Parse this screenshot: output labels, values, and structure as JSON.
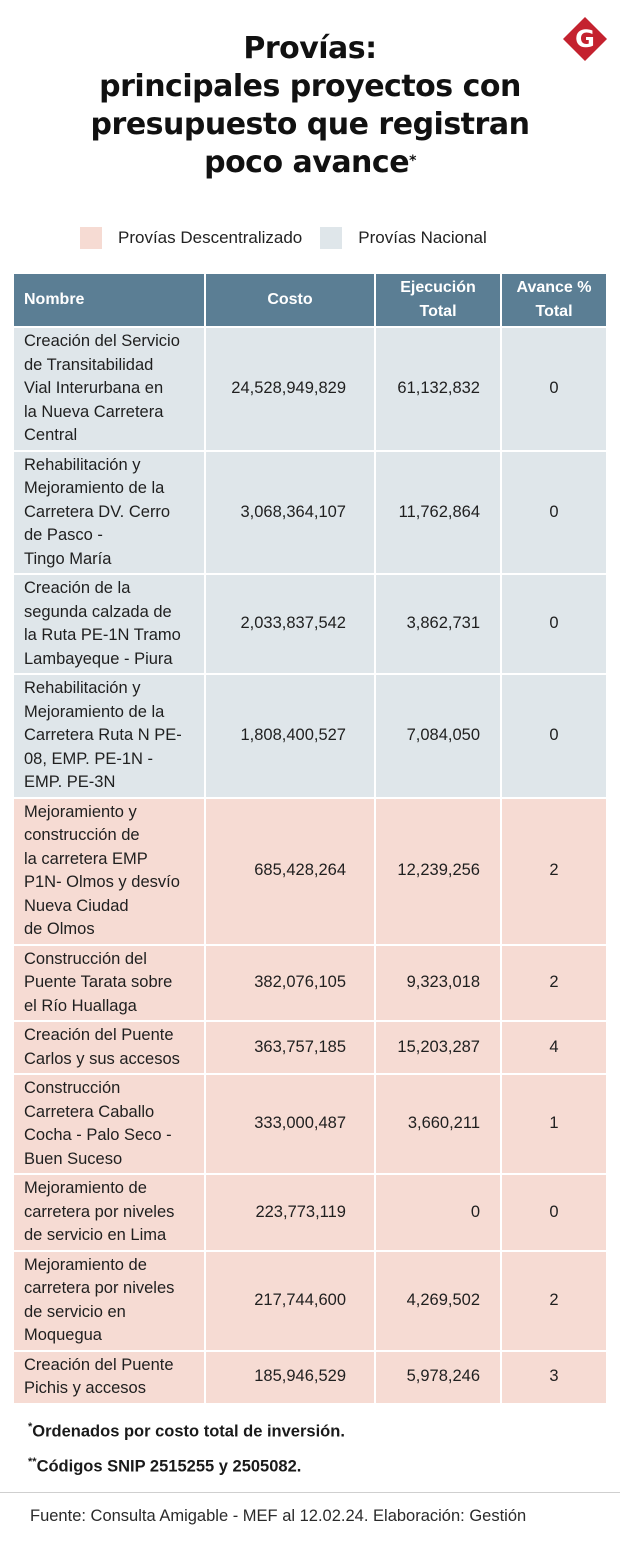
{
  "header": {
    "title_lines": [
      "Provías:",
      "principales proyectos con",
      "presupuesto que registran",
      "poco avance"
    ],
    "title_mark": "*",
    "logo_letter": "G"
  },
  "legend": [
    {
      "label": "Provías Descentralizado",
      "color": "#f6dbd3"
    },
    {
      "label": "Provías Nacional",
      "color": "#dfe6ea"
    }
  ],
  "colors": {
    "header_bg": "#5b7e94",
    "nacional": "#dfe6ea",
    "descentralizado": "#f6dbd3",
    "logo": "#c4222f"
  },
  "chart_data": {
    "type": "table",
    "columns": [
      "Nombre",
      "Costo",
      "Ejecución Total",
      "Avance % Total"
    ],
    "column_lines": [
      [
        "Nombre"
      ],
      [
        "Costo"
      ],
      [
        "Ejecución",
        "Total"
      ],
      [
        "Avance %",
        "Total"
      ]
    ],
    "rows": [
      {
        "group": "Provías Nacional",
        "name_lines": [
          "Creación del Servicio",
          "de Transitabilidad",
          "Vial Interurbana en",
          "la Nueva Carretera",
          "Central"
        ],
        "costo": "24,528,949,829",
        "ejecucion": "61,132,832",
        "avance": "0"
      },
      {
        "group": "Provías Nacional",
        "name_lines": [
          "Rehabilitación y",
          "Mejoramiento de la",
          "Carretera DV. Cerro",
          "de Pasco -",
          "Tingo María"
        ],
        "costo": "3,068,364,107",
        "ejecucion": "11,762,864",
        "avance": "0"
      },
      {
        "group": "Provías Nacional",
        "name_lines": [
          "Creación de la",
          "segunda calzada de",
          "la Ruta PE-1N Tramo",
          "Lambayeque - Piura"
        ],
        "costo": "2,033,837,542",
        "ejecucion": "3,862,731",
        "avance": "0"
      },
      {
        "group": "Provías Nacional",
        "name_lines": [
          "Rehabilitación y",
          "Mejoramiento de la",
          "Carretera Ruta N PE-",
          "08, EMP. PE-1N -",
          "EMP. PE-3N"
        ],
        "costo": "1,808,400,527",
        "ejecucion": "7,084,050",
        "avance": "0"
      },
      {
        "group": "Provías Descentralizado",
        "name_lines": [
          "Mejoramiento y",
          "construcción de",
          "la carretera EMP",
          "P1N- Olmos y desvío",
          "Nueva Ciudad",
          "de Olmos"
        ],
        "costo": "685,428,264",
        "ejecucion": "12,239,256",
        "avance": "2"
      },
      {
        "group": "Provías Descentralizado",
        "name_lines": [
          "Construcción del",
          "Puente Tarata sobre",
          "el Río Huallaga"
        ],
        "costo": "382,076,105",
        "ejecucion": "9,323,018",
        "avance": "2"
      },
      {
        "group": "Provías Descentralizado",
        "name_lines": [
          "Creación del Puente",
          "Carlos y sus accesos"
        ],
        "costo": "363,757,185",
        "ejecucion": "15,203,287",
        "avance": "4"
      },
      {
        "group": "Provías Descentralizado",
        "name_lines": [
          "Construcción",
          "Carretera Caballo",
          "Cocha - Palo Seco -",
          "Buen Suceso"
        ],
        "costo": "333,000,487",
        "ejecucion": "3,660,211",
        "avance": "1"
      },
      {
        "group": "Provías Descentralizado",
        "name_lines": [
          "Mejoramiento de",
          "carretera por niveles",
          "de servicio en Lima"
        ],
        "costo": "223,773,119",
        "ejecucion": "0",
        "avance": "0"
      },
      {
        "group": "Provías Descentralizado",
        "name_lines": [
          "Mejoramiento de",
          "carretera por niveles",
          "de servicio en",
          "Moquegua"
        ],
        "costo": "217,744,600",
        "ejecucion": "4,269,502",
        "avance": "2"
      },
      {
        "group": "Provías Descentralizado",
        "name_lines": [
          "Creación del Puente",
          "Pichis y accesos"
        ],
        "costo": "185,946,529",
        "ejecucion": "5,978,246",
        "avance": "3"
      }
    ]
  },
  "notes": [
    {
      "mark": "*",
      "text": "Ordenados por costo total de inversión."
    },
    {
      "mark": "**",
      "text": "Códigos SNIP 2515255 y 2505082."
    }
  ],
  "source": "Fuente: Consulta Amigable - MEF al 12.02.24. Elaboración: Gestión"
}
